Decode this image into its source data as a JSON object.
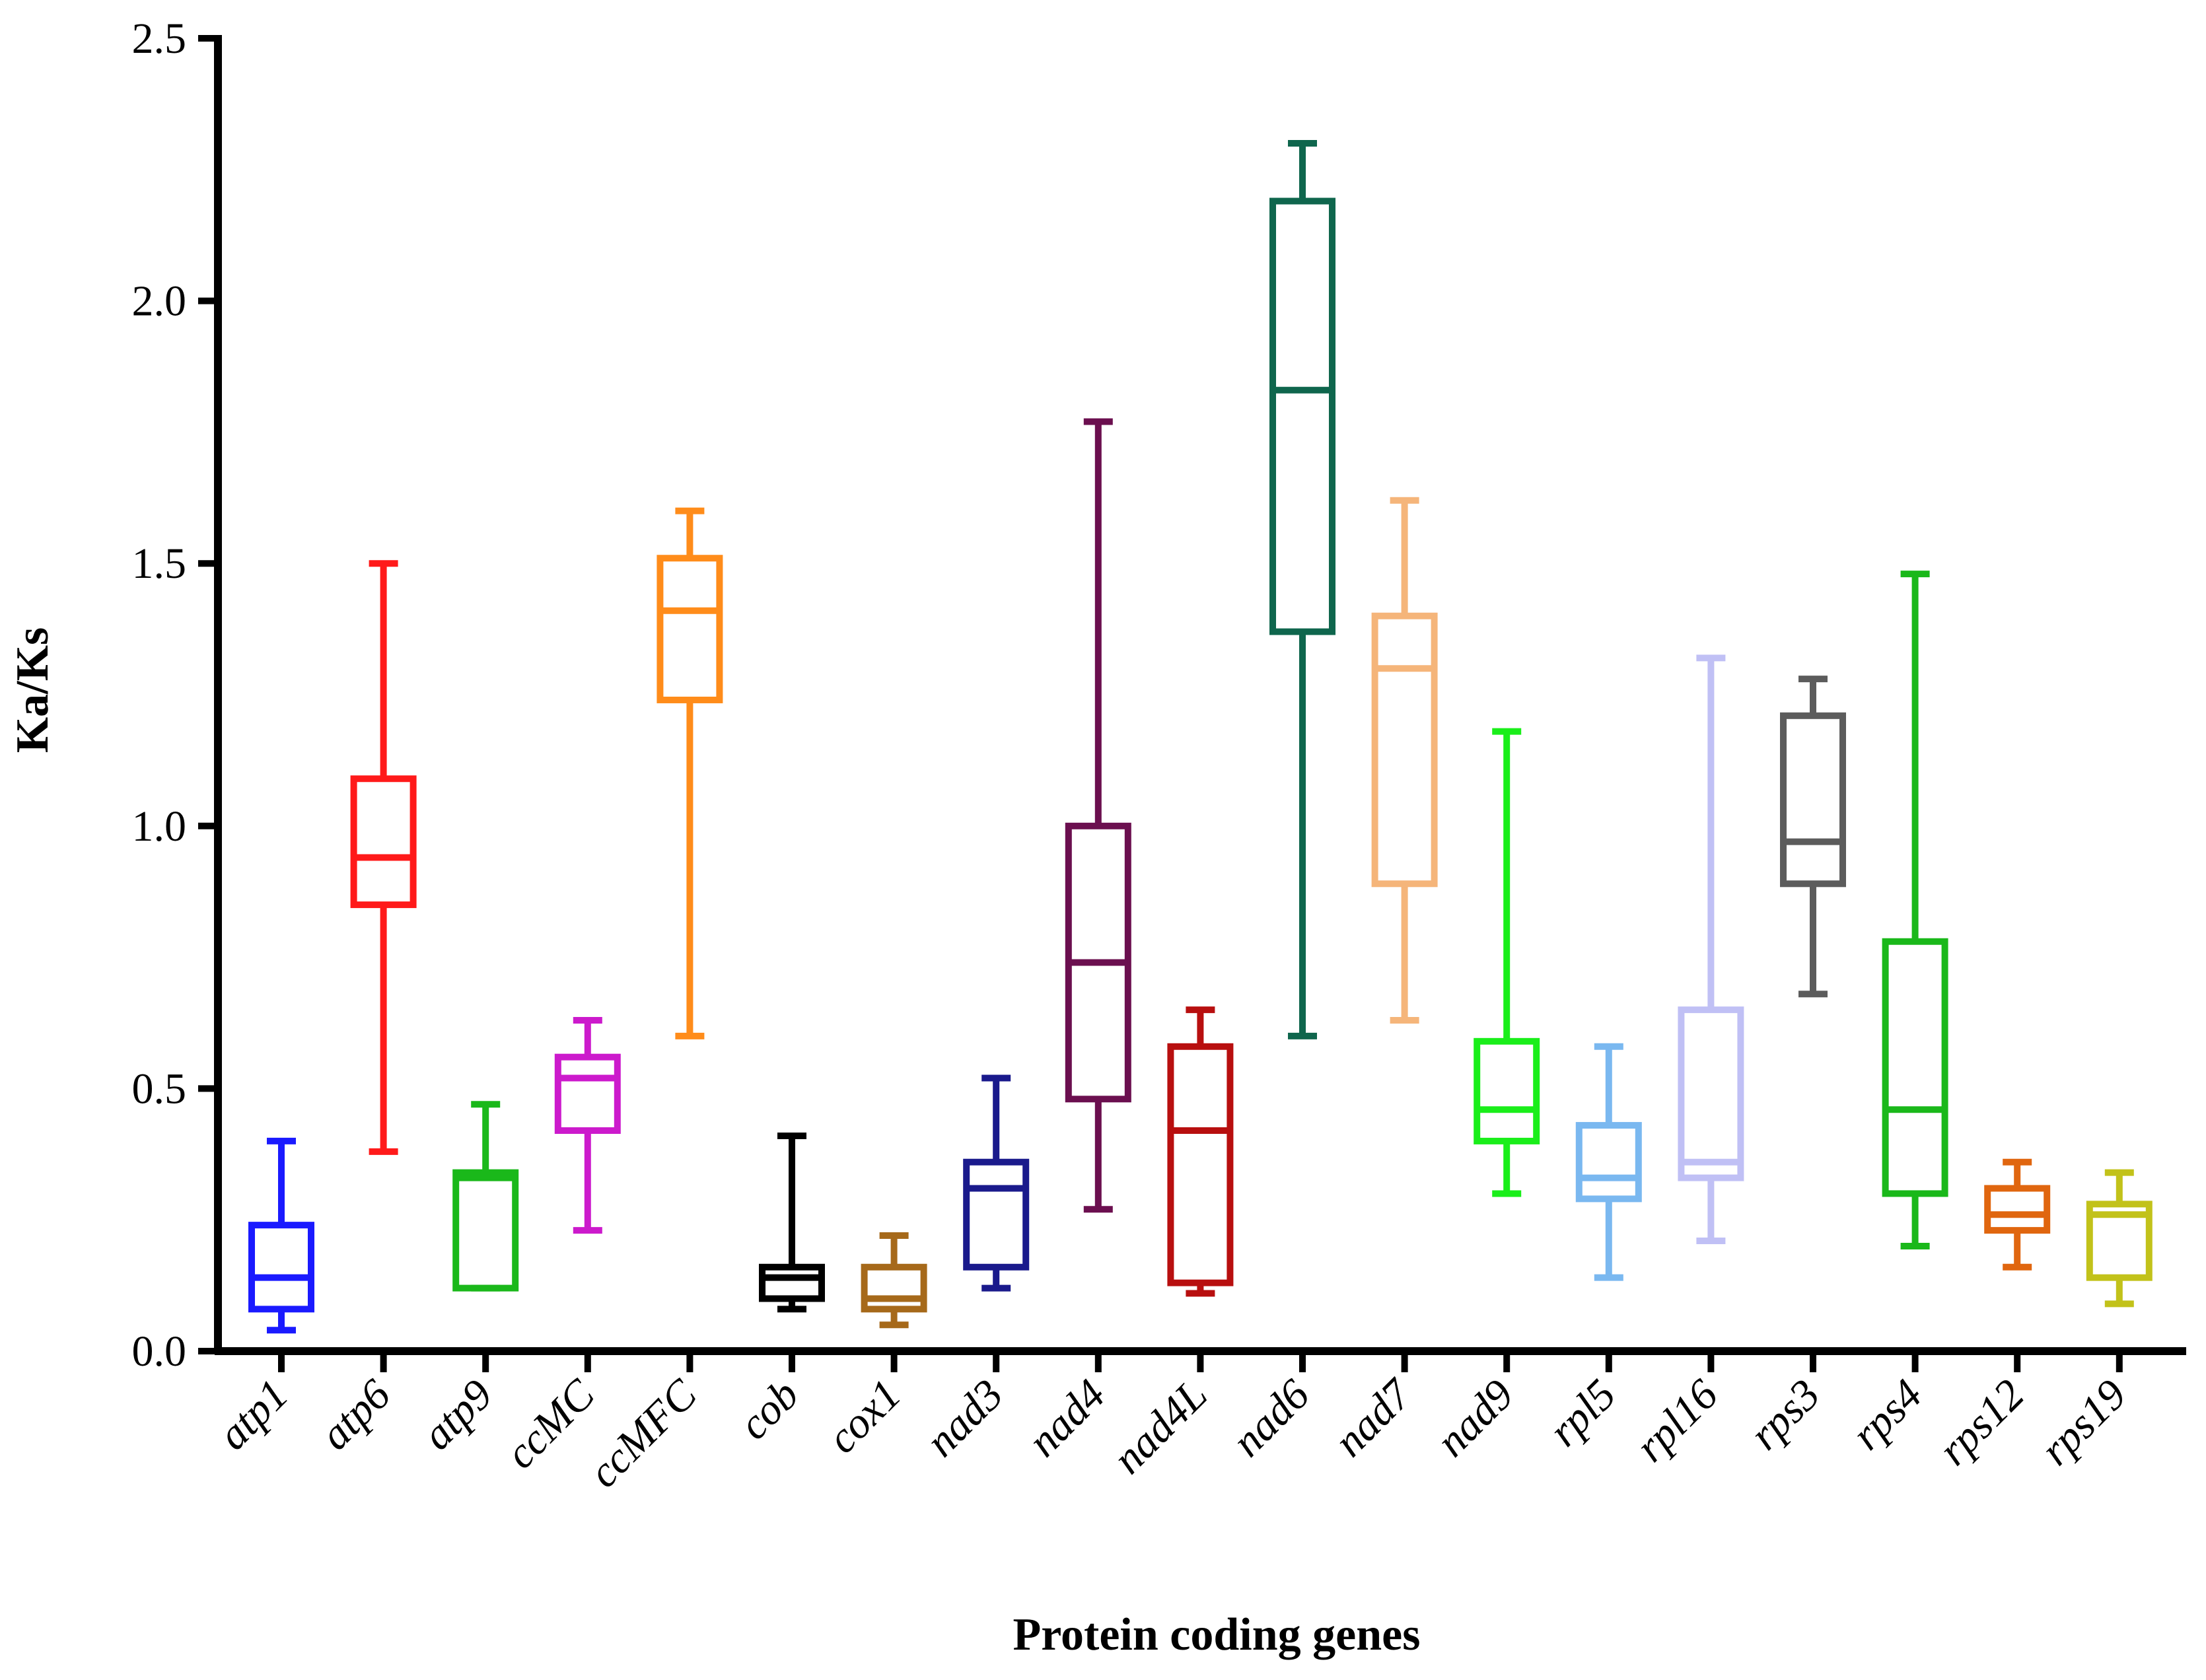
{
  "chart_data": {
    "type": "boxplot",
    "title": "",
    "xlabel": "Protein coding genes",
    "ylabel": "Ka/Ks",
    "ylim": [
      0,
      2.5
    ],
    "yticks": [
      0.0,
      0.5,
      1.0,
      1.5,
      2.0,
      2.5
    ],
    "ytick_labels": [
      "0.0",
      "0.5",
      "1.0",
      "1.5",
      "2.0",
      "2.5"
    ],
    "categories": [
      "atp1",
      "atp6",
      "atp9",
      "ccMC",
      "ccMFC",
      "cob",
      "cox1",
      "nad3",
      "nad4",
      "nad4L",
      "nad6",
      "nad7",
      "nad9",
      "rpl5",
      "rpl16",
      "rps3",
      "rps4",
      "rps12",
      "rps19"
    ],
    "boxes": [
      {
        "name": "atp1",
        "min": 0.04,
        "q1": 0.08,
        "median": 0.14,
        "q3": 0.24,
        "max": 0.4,
        "color": "#1a1aff"
      },
      {
        "name": "atp6",
        "min": 0.38,
        "q1": 0.85,
        "median": 0.94,
        "q3": 1.09,
        "max": 1.5,
        "color": "#ff1a1a"
      },
      {
        "name": "atp9",
        "min": 0.12,
        "q1": 0.12,
        "median": 0.33,
        "q3": 0.34,
        "max": 0.47,
        "color": "#1ab81a"
      },
      {
        "name": "ccMC",
        "min": 0.23,
        "q1": 0.42,
        "median": 0.52,
        "q3": 0.56,
        "max": 0.63,
        "color": "#cc1acc"
      },
      {
        "name": "ccMFC",
        "min": 0.6,
        "q1": 1.24,
        "median": 1.41,
        "q3": 1.51,
        "max": 1.6,
        "color": "#ff8c1a"
      },
      {
        "name": "cob",
        "min": 0.08,
        "q1": 0.1,
        "median": 0.14,
        "q3": 0.16,
        "max": 0.41,
        "color": "#000000"
      },
      {
        "name": "cox1",
        "min": 0.05,
        "q1": 0.08,
        "median": 0.1,
        "q3": 0.16,
        "max": 0.22,
        "color": "#a6691a"
      },
      {
        "name": "nad3",
        "min": 0.12,
        "q1": 0.16,
        "median": 0.31,
        "q3": 0.36,
        "max": 0.52,
        "color": "#1a1a8c"
      },
      {
        "name": "nad4",
        "min": 0.27,
        "q1": 0.48,
        "median": 0.74,
        "q3": 1.0,
        "max": 1.77,
        "color": "#6b0f4f"
      },
      {
        "name": "nad4L",
        "min": 0.11,
        "q1": 0.13,
        "median": 0.42,
        "q3": 0.58,
        "max": 0.65,
        "color": "#b80f0f"
      },
      {
        "name": "nad6",
        "min": 0.6,
        "q1": 1.37,
        "median": 1.83,
        "q3": 2.19,
        "max": 2.3,
        "color": "#0f664d"
      },
      {
        "name": "nad7",
        "min": 0.63,
        "q1": 0.89,
        "median": 1.3,
        "q3": 1.4,
        "max": 1.62,
        "color": "#f5b57a"
      },
      {
        "name": "nad9",
        "min": 0.3,
        "q1": 0.4,
        "median": 0.46,
        "q3": 0.59,
        "max": 1.18,
        "color": "#1aee1a"
      },
      {
        "name": "rpl5",
        "min": 0.14,
        "q1": 0.29,
        "median": 0.33,
        "q3": 0.43,
        "max": 0.58,
        "color": "#7ab8f0"
      },
      {
        "name": "rpl16",
        "min": 0.21,
        "q1": 0.33,
        "median": 0.36,
        "q3": 0.65,
        "max": 1.32,
        "color": "#c0c0f5"
      },
      {
        "name": "rps3",
        "min": 0.68,
        "q1": 0.89,
        "median": 0.97,
        "q3": 1.21,
        "max": 1.28,
        "color": "#5c5c5c"
      },
      {
        "name": "rps4",
        "min": 0.2,
        "q1": 0.3,
        "median": 0.46,
        "q3": 0.78,
        "max": 1.48,
        "color": "#1ab81a"
      },
      {
        "name": "rps12",
        "min": 0.16,
        "q1": 0.23,
        "median": 0.26,
        "q3": 0.31,
        "max": 0.36,
        "color": "#e0660f"
      },
      {
        "name": "rps19",
        "min": 0.09,
        "q1": 0.14,
        "median": 0.26,
        "q3": 0.28,
        "max": 0.34,
        "color": "#c2c21a"
      }
    ]
  }
}
